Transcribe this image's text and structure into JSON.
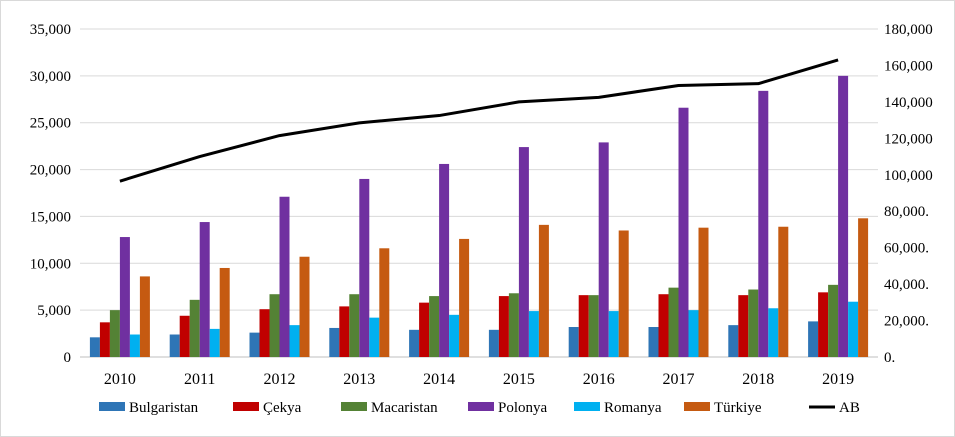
{
  "chart_data": {
    "type": "bar",
    "categories": [
      "2010",
      "2011",
      "2012",
      "2013",
      "2014",
      "2015",
      "2016",
      "2017",
      "2018",
      "2019"
    ],
    "series": [
      {
        "name": "Bulgaristan",
        "type": "bar",
        "axis": "left",
        "color": "#2e75b6",
        "values": [
          2100,
          2400,
          2600,
          3100,
          2900,
          2900,
          3200,
          3200,
          3400,
          3800
        ]
      },
      {
        "name": "Çekya",
        "type": "bar",
        "axis": "left",
        "color": "#c00000",
        "values": [
          3700,
          4400,
          5100,
          5400,
          5800,
          6500,
          6600,
          6700,
          6600,
          6900
        ]
      },
      {
        "name": "Macaristan",
        "type": "bar",
        "axis": "left",
        "color": "#548235",
        "values": [
          5000,
          6100,
          6700,
          6700,
          6500,
          6800,
          6600,
          7400,
          7200,
          7700
        ]
      },
      {
        "name": "Polonya",
        "type": "bar",
        "axis": "left",
        "color": "#7030a0",
        "values": [
          12800,
          14400,
          17100,
          19000,
          20600,
          22400,
          22900,
          26600,
          28400,
          30000
        ]
      },
      {
        "name": "Romanya",
        "type": "bar",
        "axis": "left",
        "color": "#00b0f0",
        "values": [
          2400,
          3000,
          3400,
          4200,
          4500,
          4900,
          4900,
          5000,
          5200,
          5900
        ]
      },
      {
        "name": "Türkiye",
        "type": "bar",
        "axis": "left",
        "color": "#c55a11",
        "values": [
          8600,
          9500,
          10700,
          11600,
          12600,
          14100,
          13500,
          13800,
          13900,
          14800
        ]
      },
      {
        "name": "AB",
        "type": "line",
        "axis": "right",
        "color": "#000000",
        "values": [
          96500,
          110000,
          121500,
          128500,
          132500,
          140000,
          142500,
          149000,
          150000,
          163000
        ]
      }
    ],
    "left_axis": {
      "min": 0,
      "max": 35000,
      "step": 5000,
      "tick_labels": [
        "0",
        "5,000",
        "10,000",
        "15,000",
        "20,000",
        "25,000",
        "30,000",
        "35,000"
      ]
    },
    "right_axis": {
      "min": 0,
      "max": 180000,
      "step": 20000,
      "tick_labels": [
        "0.",
        "20,000.",
        "40,000.",
        "60,000.",
        "80,000.",
        "100,000",
        "120,000",
        "140,000",
        "160,000",
        "180,000"
      ]
    },
    "legend_position": "bottom",
    "grid": true,
    "grid_color": "#d9d9d9"
  }
}
